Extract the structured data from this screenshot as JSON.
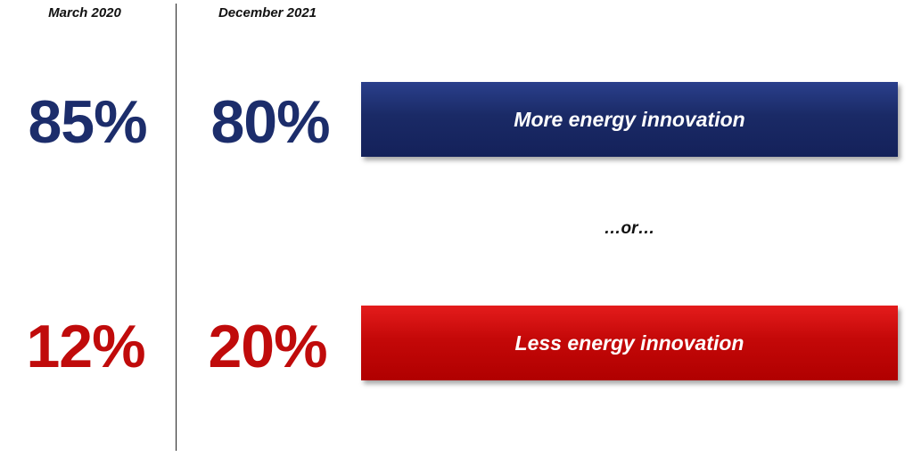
{
  "columns": [
    "March 2020",
    "December 2021"
  ],
  "rows": [
    {
      "label": "More energy innovation",
      "values": [
        "85%",
        "80%"
      ]
    },
    {
      "label": "Less energy innovation",
      "values": [
        "12%",
        "20%"
      ]
    }
  ],
  "separator": "…or…"
}
